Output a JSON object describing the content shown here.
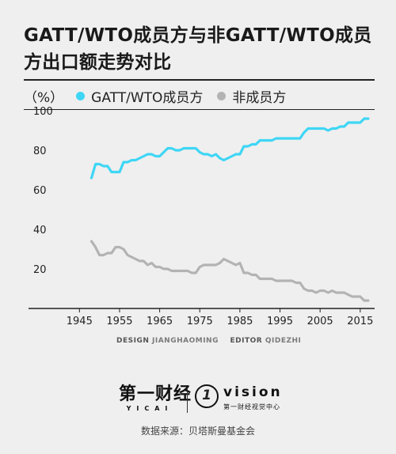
{
  "title": "GATT/WTO成员方与非GATT/WTO成员方出口额走势对比",
  "credits": {
    "design_label": "DESIGN",
    "designer": "JIANGHAOMING",
    "editor_label": "EDITOR",
    "editor": "QIDEZHI"
  },
  "logos": {
    "yicai_cn": "第一财经",
    "yicai_en": "YICAI",
    "vision_mark": "1",
    "vision_word": "vision",
    "vision_sub": "第一财经视觉中心"
  },
  "source": "数据来源：贝塔斯曼基金会",
  "colors": {
    "members": "#3fd6f5",
    "non_members": "#b3b3b3",
    "background": "#efefef"
  },
  "chart_data": {
    "type": "line",
    "unit": "（%）",
    "title": "",
    "xlabel": "",
    "ylabel": "",
    "xlim": [
      1940,
      2018
    ],
    "ylim": [
      0,
      100
    ],
    "xticks": [
      1945,
      1955,
      1965,
      1975,
      1985,
      1995,
      2005,
      2015
    ],
    "yticks": [
      20,
      40,
      60,
      80,
      100
    ],
    "grid": false,
    "legend": "top-left",
    "series": [
      {
        "name": "GATT/WTO成员方",
        "color": "#3fd6f5",
        "x": [
          1948,
          1949,
          1950,
          1951,
          1952,
          1953,
          1954,
          1955,
          1956,
          1957,
          1958,
          1959,
          1960,
          1961,
          1962,
          1963,
          1964,
          1965,
          1966,
          1967,
          1968,
          1969,
          1970,
          1971,
          1972,
          1973,
          1974,
          1975,
          1976,
          1977,
          1978,
          1979,
          1980,
          1981,
          1982,
          1983,
          1984,
          1985,
          1986,
          1987,
          1988,
          1989,
          1990,
          1991,
          1992,
          1993,
          1994,
          1995,
          1996,
          1997,
          1998,
          1999,
          2000,
          2001,
          2002,
          2003,
          2004,
          2005,
          2006,
          2007,
          2008,
          2009,
          2010,
          2011,
          2012,
          2013,
          2014,
          2015,
          2016,
          2017
        ],
        "values": [
          66,
          73,
          73,
          72,
          72,
          69,
          69,
          69,
          74,
          74,
          75,
          75,
          76,
          77,
          78,
          78,
          77,
          77,
          79,
          81,
          81,
          80,
          80,
          81,
          81,
          81,
          81,
          79,
          78,
          78,
          77,
          78,
          76,
          75,
          76,
          77,
          78,
          78,
          82,
          82,
          83,
          83,
          85,
          85,
          85,
          85,
          86,
          86,
          86,
          86,
          86,
          86,
          86,
          89,
          91,
          91,
          91,
          91,
          91,
          90,
          91,
          91,
          92,
          92,
          94,
          94,
          94,
          94,
          96,
          96
        ]
      },
      {
        "name": "非成员方",
        "color": "#b3b3b3",
        "x": [
          1948,
          1949,
          1950,
          1951,
          1952,
          1953,
          1954,
          1955,
          1956,
          1957,
          1958,
          1959,
          1960,
          1961,
          1962,
          1963,
          1964,
          1965,
          1966,
          1967,
          1968,
          1969,
          1970,
          1971,
          1972,
          1973,
          1974,
          1975,
          1976,
          1977,
          1978,
          1979,
          1980,
          1981,
          1982,
          1983,
          1984,
          1985,
          1986,
          1987,
          1988,
          1989,
          1990,
          1991,
          1992,
          1993,
          1994,
          1995,
          1996,
          1997,
          1998,
          1999,
          2000,
          2001,
          2002,
          2003,
          2004,
          2005,
          2006,
          2007,
          2008,
          2009,
          2010,
          2011,
          2012,
          2013,
          2014,
          2015,
          2016,
          2017
        ],
        "values": [
          34,
          31,
          27,
          27,
          28,
          28,
          31,
          31,
          30,
          27,
          26,
          25,
          24,
          24,
          22,
          23,
          21,
          21,
          20,
          20,
          19,
          19,
          19,
          19,
          19,
          18,
          18,
          21,
          22,
          22,
          22,
          22,
          23,
          25,
          24,
          23,
          22,
          23,
          18,
          18,
          17,
          17,
          15,
          15,
          15,
          15,
          14,
          14,
          14,
          14,
          14,
          13,
          13,
          10,
          9,
          9,
          8,
          9,
          9,
          8,
          9,
          8,
          8,
          8,
          7,
          6,
          6,
          6,
          4,
          4
        ]
      }
    ]
  }
}
